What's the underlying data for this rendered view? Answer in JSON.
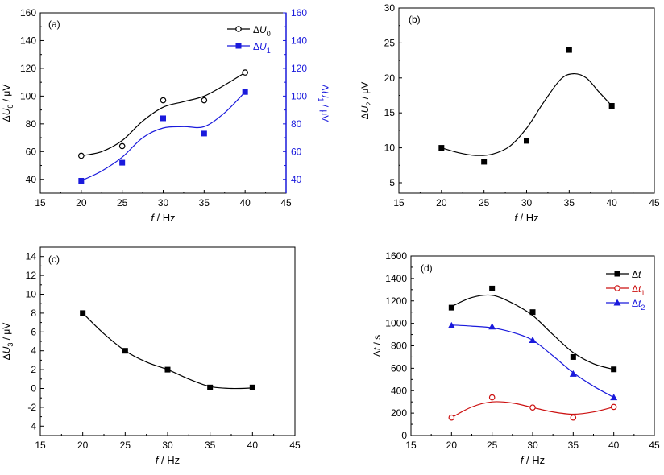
{
  "chart_data": [
    {
      "id": "a",
      "type": "scatter",
      "panel_label": "(a)",
      "xlabel": {
        "italic": "f",
        "rest": " / Hz"
      },
      "xlim": [
        15,
        45
      ],
      "xticks": [
        "15",
        "20",
        "25",
        "30",
        "35",
        "40",
        "45"
      ],
      "ylabel": {
        "delta": "Δ",
        "italic": "U",
        "sub": "0",
        "rest": " / μV"
      },
      "ylim": [
        30,
        160
      ],
      "yticks": [
        "40",
        "60",
        "80",
        "100",
        "120",
        "140",
        "160"
      ],
      "y2label": {
        "delta": "Δ",
        "italic": "U",
        "sub": "1",
        "rest": " / μV"
      },
      "y2ticks": [
        "40",
        "60",
        "80",
        "100",
        "120",
        "140",
        "160"
      ],
      "y2_color": "#1a1adc",
      "legend": "top-right",
      "series": [
        {
          "name": "ΔU0",
          "legend_delta": "Δ",
          "legend_italic": "U",
          "legend_sub": "0",
          "marker": "circle-open",
          "color": "#000000",
          "x": [
            20,
            25,
            30,
            35,
            40
          ],
          "y": [
            57,
            64,
            97,
            97,
            117
          ]
        },
        {
          "name": "ΔU1",
          "legend_delta": "Δ",
          "legend_italic": "U",
          "legend_sub": "1",
          "marker": "square",
          "color": "#1a1adc",
          "x": [
            20,
            25,
            30,
            35,
            40
          ],
          "y": [
            39,
            52,
            84,
            73,
            103
          ]
        }
      ]
    },
    {
      "id": "b",
      "type": "scatter",
      "panel_label": "(b)",
      "xlabel": {
        "italic": "f",
        "rest": " / Hz"
      },
      "xlim": [
        15,
        45
      ],
      "xticks": [
        "15",
        "20",
        "25",
        "30",
        "35",
        "40",
        "45"
      ],
      "ylabel": {
        "delta": "Δ",
        "italic": "U",
        "sub": "2",
        "rest": " / μV"
      },
      "ylim": [
        3.5,
        30
      ],
      "yticks": [
        "5",
        "10",
        "15",
        "20",
        "25",
        "30"
      ],
      "series": [
        {
          "marker": "square",
          "color": "#000000",
          "x": [
            20,
            25,
            30,
            35,
            40
          ],
          "y": [
            10,
            8,
            11,
            24,
            16
          ]
        }
      ]
    },
    {
      "id": "c",
      "type": "scatter",
      "panel_label": "(c)",
      "xlabel": {
        "italic": "f",
        "rest": " / Hz"
      },
      "xlim": [
        15,
        45
      ],
      "xticks": [
        "15",
        "20",
        "25",
        "30",
        "35",
        "40",
        "45"
      ],
      "ylabel": {
        "delta": "Δ",
        "italic": "U",
        "sub": "3",
        "rest": " / μV"
      },
      "ylim": [
        -5,
        15
      ],
      "yticks": [
        "-4",
        "-2",
        "0",
        "2",
        "4",
        "6",
        "8",
        "10",
        "12",
        "14"
      ],
      "series": [
        {
          "marker": "square",
          "color": "#000000",
          "x": [
            20,
            25,
            30,
            35,
            40
          ],
          "y": [
            8,
            4,
            2,
            0.1,
            0.1
          ]
        }
      ]
    },
    {
      "id": "d",
      "type": "scatter",
      "panel_label": "(d)",
      "xlabel": {
        "italic": "f",
        "rest": " / Hz"
      },
      "xlim": [
        15,
        45
      ],
      "xticks": [
        "15",
        "20",
        "25",
        "30",
        "35",
        "40",
        "45"
      ],
      "ylabel": {
        "delta": "Δ",
        "italic": "t",
        "sub": "",
        "rest": " / s"
      },
      "ylim": [
        0,
        1600
      ],
      "yticks": [
        "0",
        "200",
        "400",
        "600",
        "800",
        "1000",
        "1200",
        "1400",
        "1600"
      ],
      "legend": "top-right",
      "series": [
        {
          "name": "Δt",
          "legend_delta": "Δ",
          "legend_italic": "t",
          "legend_sub": "",
          "marker": "square",
          "color": "#000000",
          "x": [
            20,
            25,
            30,
            35,
            40
          ],
          "y": [
            1140,
            1310,
            1100,
            700,
            590
          ]
        },
        {
          "name": "Δt1",
          "legend_delta": "Δ",
          "legend_italic": "t",
          "legend_sub": "1",
          "marker": "circle-open",
          "color": "#cc1111",
          "x": [
            20,
            25,
            30,
            35,
            40
          ],
          "y": [
            160,
            340,
            250,
            160,
            255
          ]
        },
        {
          "name": "Δt2",
          "legend_delta": "Δ",
          "legend_italic": "t",
          "legend_sub": "2",
          "marker": "triangle",
          "color": "#1a1adc",
          "x": [
            20,
            25,
            30,
            35,
            40
          ],
          "y": [
            980,
            970,
            850,
            550,
            340
          ]
        }
      ]
    }
  ]
}
